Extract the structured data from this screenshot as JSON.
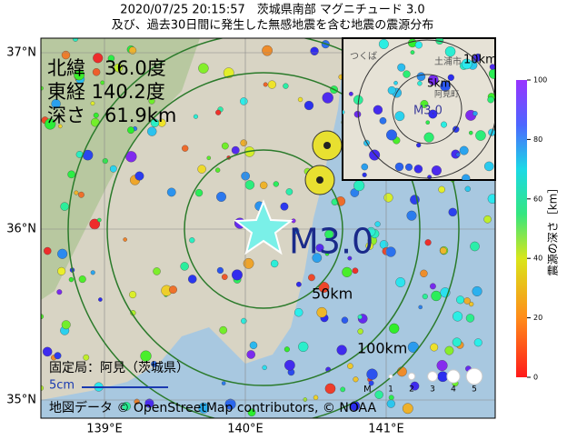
{
  "header": {
    "line1": "2020/07/25 20:15:57　茨城県南部 マグニチュード 3.0",
    "line2": "及び、過去30日間に発生した無感地震を含む地震の震源分布"
  },
  "info": {
    "latitude": "北緯　36.0度",
    "longitude": "東経 140.2度",
    "depth": "深さ　61.9km"
  },
  "map": {
    "magnitude": "M3.0",
    "ring_50": "50km",
    "ring_100": "100km",
    "station": "固定局：阿見（茨城県）",
    "scale": "5cm",
    "credit": "地図データ © OpenStreetMap contributors, © NOAA",
    "lat_labels": [
      "37°N",
      "36°N",
      "35°N"
    ],
    "lon_labels": [
      "139°E",
      "140°E",
      "141°E"
    ]
  },
  "inset": {
    "ring_10": "10km",
    "ring_5": "5km",
    "magnitude": "M3.0",
    "places": [
      "つくば",
      "土浦市",
      "阿見町"
    ]
  },
  "size_legend": {
    "title": "M",
    "labels": [
      "1",
      "2",
      "3",
      "4",
      "5"
    ]
  },
  "colorbar": {
    "title": "震源の深さ［km］",
    "ticks": [
      0,
      20,
      40,
      60,
      80,
      100
    ]
  }
}
